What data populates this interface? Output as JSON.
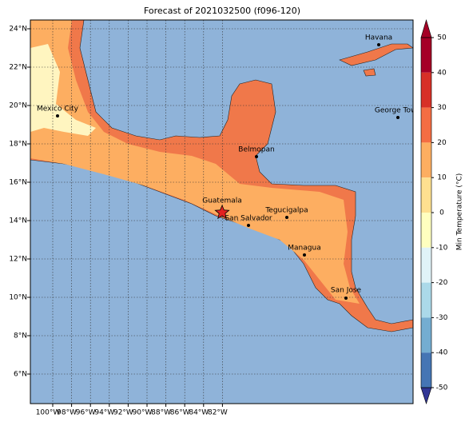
{
  "title": "Forecast of 2021032500 (f096-120)",
  "x_ticks": [
    "100°W",
    "98°W",
    "96°W",
    "94°W",
    "92°W",
    "90°W",
    "88°W",
    "86°W",
    "84°W",
    "82°W"
  ],
  "y_ticks": [
    "24°N",
    "22°N",
    "20°N",
    "18°N",
    "16°N",
    "14°N",
    "12°N",
    "10°N",
    "8°N",
    "6°N"
  ],
  "cities": [
    "Havana",
    "Mexico City",
    "George Town",
    "Belmopan",
    "Guatemala",
    "Tegucigalpa",
    "San Salvador",
    "Managua",
    "San Jose"
  ],
  "colorbar": {
    "label": "Min Temperature (°C)",
    "ticks": [
      50,
      40,
      30,
      20,
      10,
      0,
      -10,
      -20,
      -30,
      -40,
      -50
    ],
    "colors": [
      "#a50026",
      "#d73027",
      "#f46d43",
      "#fdae61",
      "#fee090",
      "#ffffbf",
      "#e0f3f8",
      "#abd9e9",
      "#74add1",
      "#4575b4",
      "#313695"
    ]
  }
}
